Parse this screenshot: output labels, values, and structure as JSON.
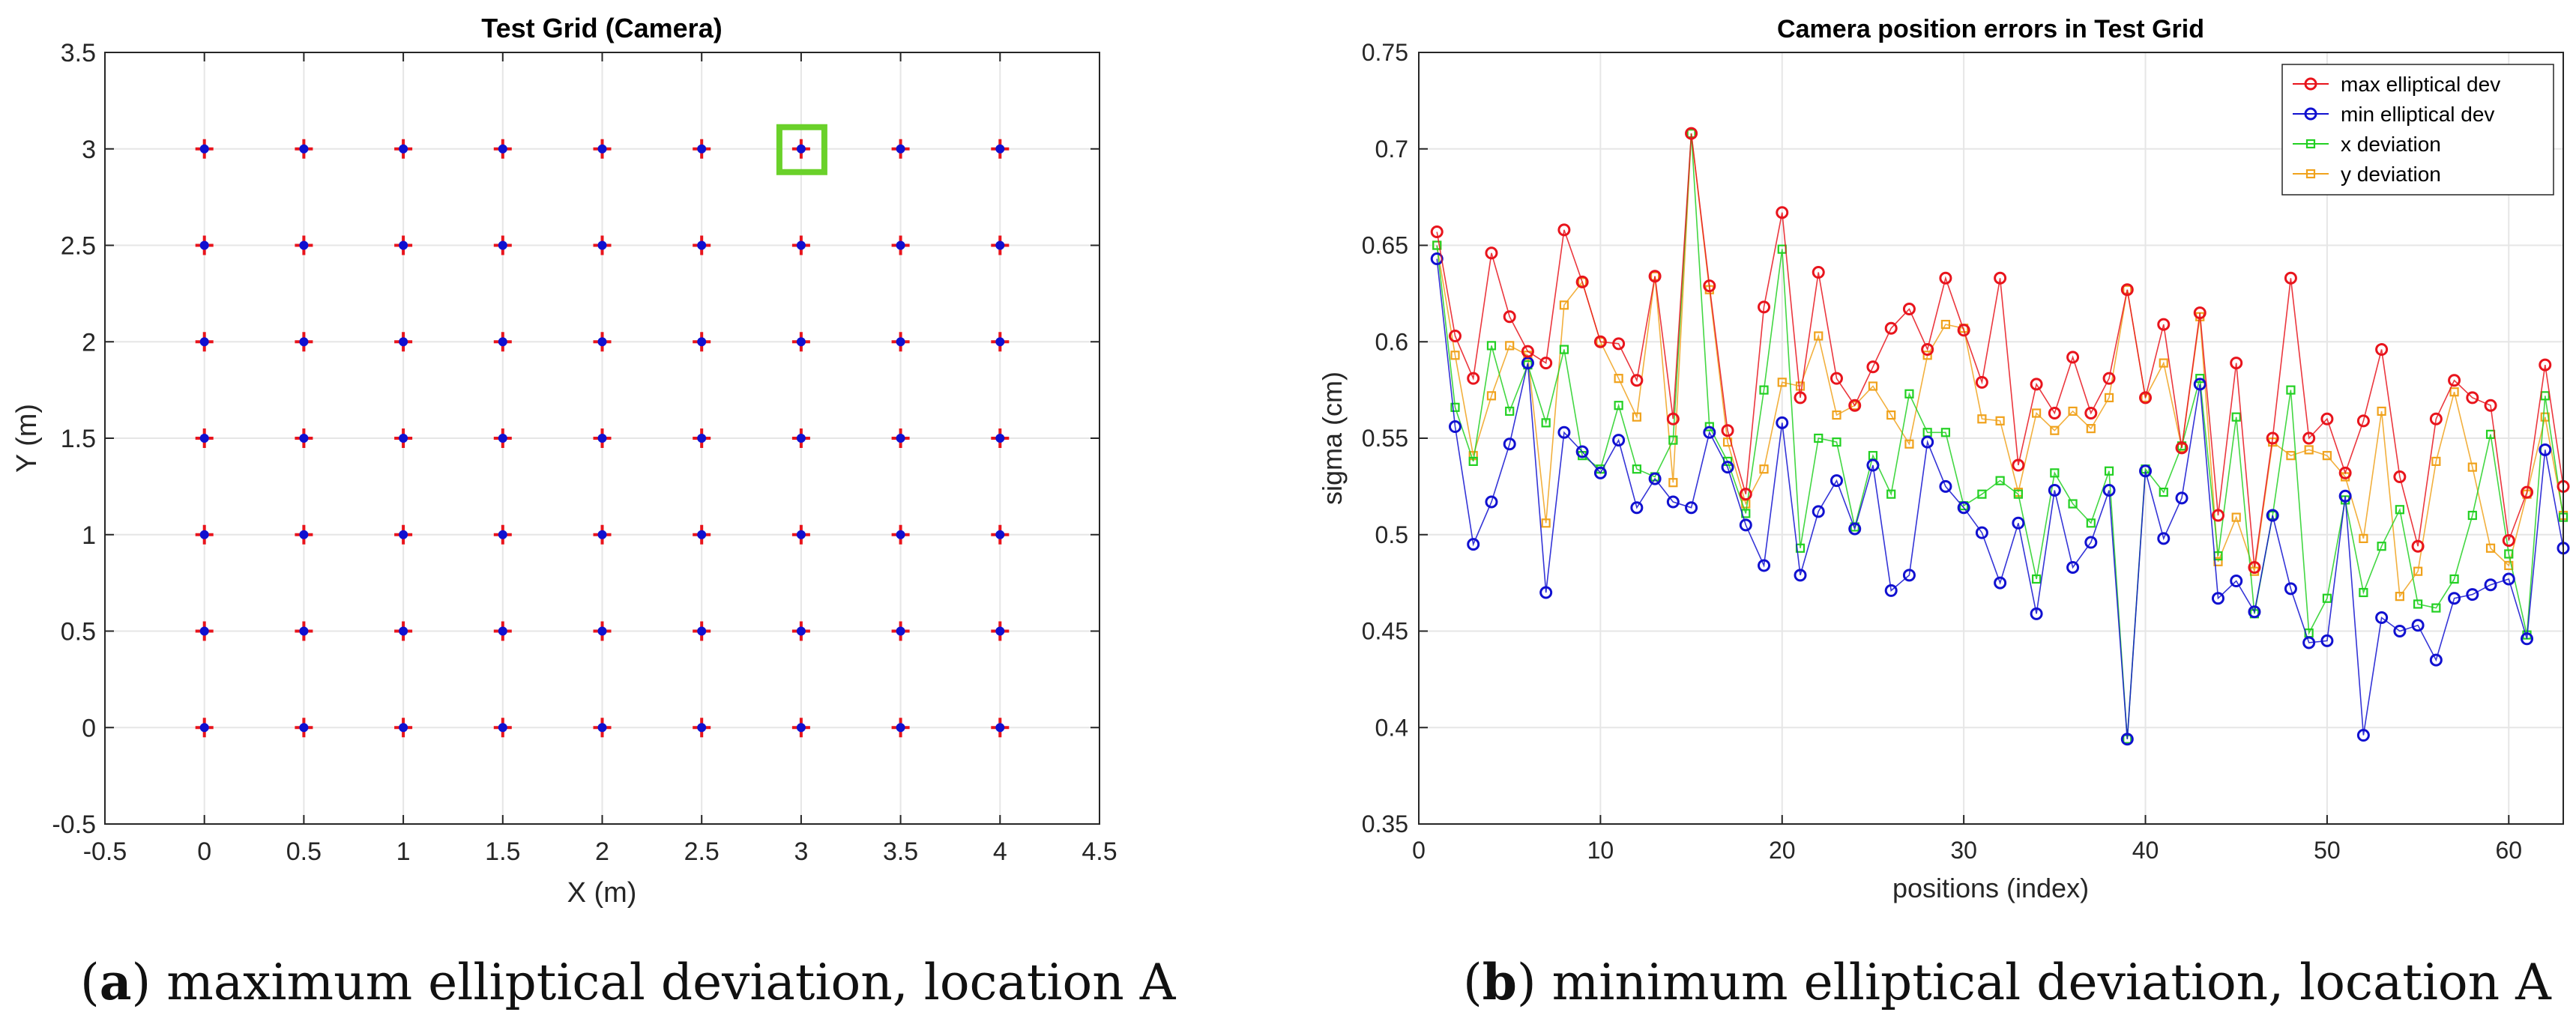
{
  "figure": {
    "captions": [
      {
        "letter": "a",
        "text": "maximum elliptical deviation, location A"
      },
      {
        "letter": "b",
        "text": "minimum elliptical deviation, location A"
      }
    ]
  },
  "chart_data": [
    {
      "type": "scatter",
      "title": "Test Grid (Camera)",
      "xlabel": "X (m)",
      "ylabel": "Y (m)",
      "xlim": [
        -0.5,
        4.5
      ],
      "ylim": [
        -0.5,
        3.5
      ],
      "xticks": [
        -0.5,
        0,
        0.5,
        1,
        1.5,
        2,
        2.5,
        3,
        3.5,
        4,
        4.5
      ],
      "yticks": [
        -0.5,
        0,
        0.5,
        1,
        1.5,
        2,
        2.5,
        3,
        3.5
      ],
      "xtick_labels": [
        "-0.5",
        "0",
        "0.5",
        "1",
        "1.5",
        "2",
        "2.5",
        "3",
        "3.5",
        "4",
        "4.5"
      ],
      "ytick_labels": [
        "-0.5",
        "0",
        "0.5",
        "1",
        "1.5",
        "2",
        "2.5",
        "3",
        "3.5"
      ],
      "grid": true,
      "grid_x": [
        0,
        0.5,
        1,
        1.5,
        2,
        2.5,
        3,
        3.5,
        4
      ],
      "grid_y": [
        0,
        0.5,
        1,
        1.5,
        2,
        2.5,
        3
      ],
      "marker_colors": {
        "cross": "#e8141c",
        "dot": "#1010d0"
      },
      "highlight": {
        "x": 3,
        "y": 3,
        "color": "#6ad12a"
      }
    },
    {
      "type": "line",
      "title": "Camera position errors in Test Grid",
      "xlabel": "positions (index)",
      "ylabel": "sigma (cm)",
      "xlim": [
        0,
        63
      ],
      "ylim": [
        0.35,
        0.75
      ],
      "xticks": [
        0,
        10,
        20,
        30,
        40,
        50,
        60
      ],
      "yticks": [
        0.35,
        0.4,
        0.45,
        0.5,
        0.55,
        0.6,
        0.65,
        0.7,
        0.75
      ],
      "xtick_labels": [
        "0",
        "10",
        "20",
        "30",
        "40",
        "50",
        "60"
      ],
      "ytick_labels": [
        "0.35",
        "0.4",
        "0.45",
        "0.5",
        "0.55",
        "0.6",
        "0.65",
        "0.7",
        "0.75"
      ],
      "grid": true,
      "legend": "top-right",
      "x": [
        1,
        2,
        3,
        4,
        5,
        6,
        7,
        8,
        9,
        10,
        11,
        12,
        13,
        14,
        15,
        16,
        17,
        18,
        19,
        20,
        21,
        22,
        23,
        24,
        25,
        26,
        27,
        28,
        29,
        30,
        31,
        32,
        33,
        34,
        35,
        36,
        37,
        38,
        39,
        40,
        41,
        42,
        43,
        44,
        45,
        46,
        47,
        48,
        49,
        50,
        51,
        52,
        53,
        54,
        55,
        56,
        57,
        58,
        59,
        60,
        61,
        62,
        63
      ],
      "series": [
        {
          "name": "max elliptical dev",
          "color": "#e8141c",
          "marker": "circle",
          "values": [
            0.657,
            0.603,
            0.581,
            0.646,
            0.613,
            0.595,
            0.589,
            0.658,
            0.631,
            0.6,
            0.599,
            0.58,
            0.634,
            0.56,
            0.708,
            0.629,
            0.554,
            0.521,
            0.618,
            0.667,
            0.571,
            0.636,
            0.581,
            0.567,
            0.587,
            0.607,
            0.617,
            0.596,
            0.633,
            0.606,
            0.579,
            0.633,
            0.536,
            0.578,
            0.563,
            0.592,
            0.563,
            0.581,
            0.627,
            0.571,
            0.609,
            0.545,
            0.615,
            0.51,
            0.589,
            0.483,
            0.55,
            0.633,
            0.55,
            0.56,
            0.532,
            0.559,
            0.596,
            0.53,
            0.494,
            0.56,
            0.58,
            0.571,
            0.567,
            0.497,
            0.522,
            0.588,
            0.525
          ]
        },
        {
          "name": "min elliptical dev",
          "color": "#1010d0",
          "marker": "circle",
          "values": [
            0.643,
            0.556,
            0.495,
            0.517,
            0.547,
            0.589,
            0.47,
            0.553,
            0.543,
            0.532,
            0.549,
            0.514,
            0.529,
            0.517,
            0.514,
            0.553,
            0.535,
            0.505,
            0.484,
            0.558,
            0.479,
            0.512,
            0.528,
            0.503,
            0.536,
            0.471,
            0.479,
            0.548,
            0.525,
            0.514,
            0.501,
            0.475,
            0.506,
            0.459,
            0.523,
            0.483,
            0.496,
            0.523,
            0.394,
            0.533,
            0.498,
            0.519,
            0.578,
            0.467,
            0.476,
            0.46,
            0.51,
            0.472,
            0.444,
            0.445,
            0.52,
            0.396,
            0.457,
            0.45,
            0.453,
            0.435,
            0.467,
            0.469,
            0.474,
            0.477,
            0.446,
            0.544,
            0.493
          ]
        },
        {
          "name": "x deviation",
          "color": "#22d022",
          "marker": "square",
          "values": [
            0.65,
            0.566,
            0.538,
            0.598,
            0.564,
            0.588,
            0.558,
            0.596,
            0.541,
            0.534,
            0.567,
            0.534,
            0.53,
            0.549,
            0.708,
            0.556,
            0.538,
            0.511,
            0.575,
            0.648,
            0.493,
            0.55,
            0.548,
            0.504,
            0.541,
            0.521,
            0.573,
            0.553,
            0.553,
            0.515,
            0.521,
            0.528,
            0.521,
            0.477,
            0.532,
            0.516,
            0.506,
            0.533,
            0.394,
            0.534,
            0.522,
            0.546,
            0.581,
            0.489,
            0.561,
            0.459,
            0.51,
            0.575,
            0.449,
            0.467,
            0.518,
            0.47,
            0.494,
            0.513,
            0.464,
            0.462,
            0.477,
            0.51,
            0.552,
            0.49,
            0.448,
            0.572,
            0.509
          ]
        },
        {
          "name": "y deviation",
          "color": "#f0a21c",
          "marker": "square",
          "values": [
            0.65,
            0.593,
            0.541,
            0.572,
            0.598,
            0.593,
            0.506,
            0.619,
            0.631,
            0.6,
            0.581,
            0.561,
            0.634,
            0.527,
            0.708,
            0.627,
            0.548,
            0.516,
            0.534,
            0.579,
            0.577,
            0.603,
            0.562,
            0.567,
            0.577,
            0.562,
            0.547,
            0.593,
            0.609,
            0.607,
            0.56,
            0.559,
            0.522,
            0.563,
            0.554,
            0.564,
            0.555,
            0.571,
            0.627,
            0.571,
            0.589,
            0.545,
            0.613,
            0.486,
            0.509,
            0.481,
            0.548,
            0.541,
            0.544,
            0.541,
            0.53,
            0.498,
            0.564,
            0.468,
            0.481,
            0.538,
            0.574,
            0.535,
            0.493,
            0.484,
            0.521,
            0.561,
            0.51
          ]
        }
      ]
    }
  ]
}
